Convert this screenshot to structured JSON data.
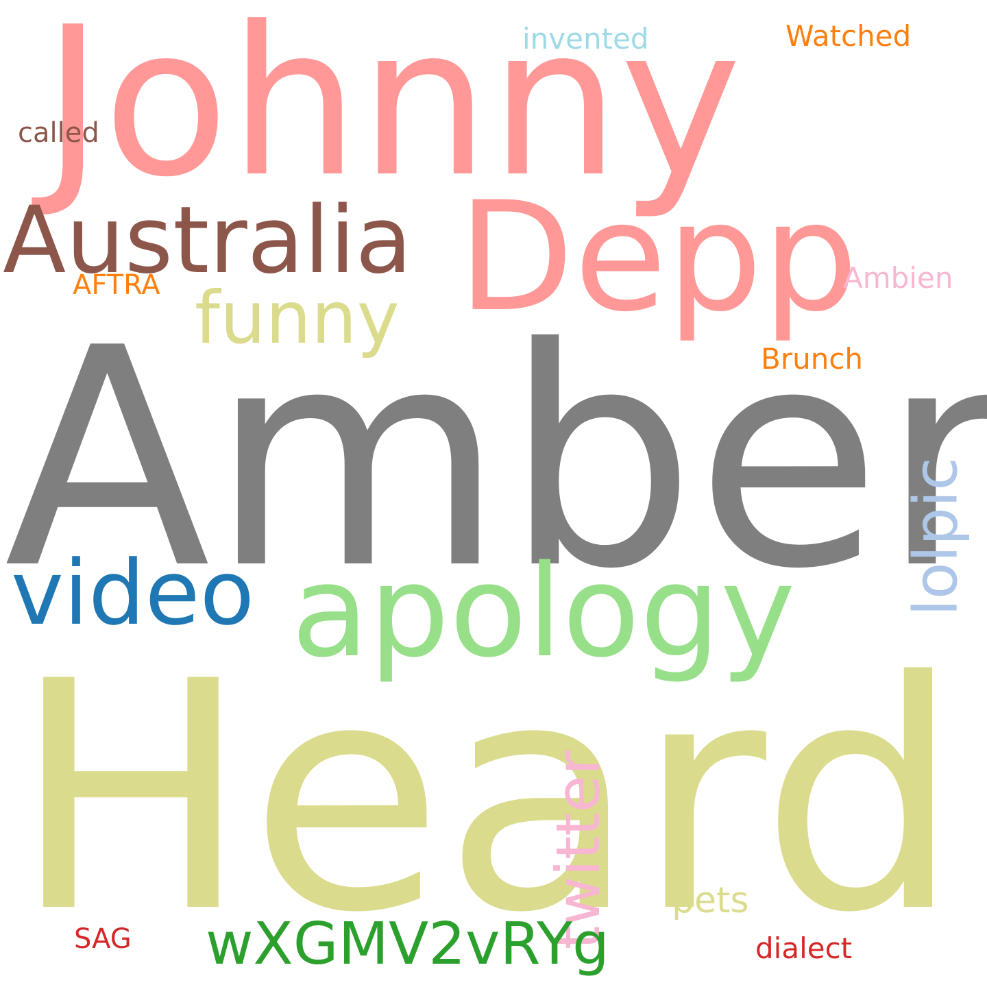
{
  "words": {
    "johnny": {
      "text": "Johnny",
      "color": "#ff9896"
    },
    "amber": {
      "text": "Amber",
      "color": "#7f7f7f"
    },
    "heard": {
      "text": "Heard",
      "color": "#dbdb8d"
    },
    "depp": {
      "text": "Depp",
      "color": "#ff9896"
    },
    "australia": {
      "text": "Australia",
      "color": "#8c564b"
    },
    "apology": {
      "text": "apology",
      "color": "#98df8a"
    },
    "video": {
      "text": "video",
      "color": "#1f77b4"
    },
    "funny": {
      "text": "funny",
      "color": "#dbdb8d"
    },
    "lolpic": {
      "text": "lolpic",
      "color": "#aec7e8"
    },
    "twitter": {
      "text": "twitter",
      "color": "#f7b6d2"
    },
    "wxgmv": {
      "text": "wXGMV2vRYg",
      "color": "#2ca02c"
    },
    "pets": {
      "text": "pets",
      "color": "#dbdb8d"
    },
    "invented": {
      "text": "invented",
      "color": "#9edae5"
    },
    "watched": {
      "text": "Watched",
      "color": "#ff7f0e"
    },
    "called": {
      "text": "called",
      "color": "#8c564b"
    },
    "aftra": {
      "text": "AFTRA",
      "color": "#ff7f0e"
    },
    "ambien": {
      "text": "Ambien",
      "color": "#f7b6d2"
    },
    "brunch": {
      "text": "Brunch",
      "color": "#ff7f0e"
    },
    "sag": {
      "text": "SAG",
      "color": "#d62728"
    },
    "dialect": {
      "text": "dialect",
      "color": "#d62728"
    }
  },
  "vertical_words": [
    "lolpic",
    "twitter"
  ]
}
